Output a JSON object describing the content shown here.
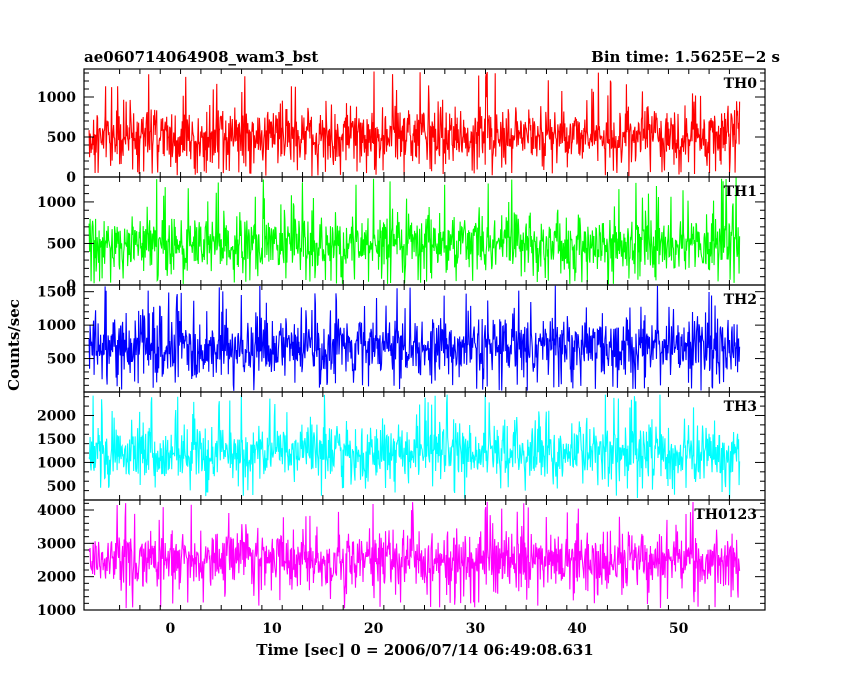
{
  "chart_data": {
    "type": "line",
    "title": "ae060714064908_wam3_bst",
    "subtitle": "Bin time: 1.5625E−2 s",
    "xlabel": "Time [sec] 0 = 2006/07/14 06:49:08.631",
    "ylabel": "Counts/sec",
    "xlim": [
      -8.5,
      58.5
    ],
    "x_range_data": [
      -8,
      56
    ],
    "x_ticks": [
      0,
      10,
      20,
      30,
      40,
      50
    ],
    "grid": false,
    "series": [
      {
        "name": "TH0",
        "color": "#ff0000",
        "ylim": [
          0,
          1350
        ],
        "y_ticks": [
          0,
          500,
          1000
        ],
        "typical_range": [
          100,
          950
        ],
        "peak_max": 1350
      },
      {
        "name": "TH1",
        "color": "#00ff00",
        "ylim": [
          0,
          1300
        ],
        "y_ticks": [
          0,
          500,
          1000
        ],
        "typical_range": [
          80,
          900
        ],
        "peak_max": 1300
      },
      {
        "name": "TH2",
        "color": "#0000ff",
        "ylim": [
          0,
          1600
        ],
        "y_ticks": [
          500,
          1000,
          1500
        ],
        "typical_range": [
          150,
          1200
        ],
        "peak_max": 1600
      },
      {
        "name": "TH3",
        "color": "#00ffff",
        "ylim": [
          200,
          2500
        ],
        "y_ticks": [
          500,
          1000,
          1500,
          2000
        ],
        "typical_range": [
          500,
          1900
        ],
        "peak_max": 2450
      },
      {
        "name": "TH0123",
        "color": "#ff00ff",
        "ylim": [
          1000,
          4300
        ],
        "y_ticks": [
          1000,
          2000,
          3000,
          4000
        ],
        "typical_range": [
          1500,
          3500
        ],
        "peak_max": 4250
      }
    ]
  }
}
